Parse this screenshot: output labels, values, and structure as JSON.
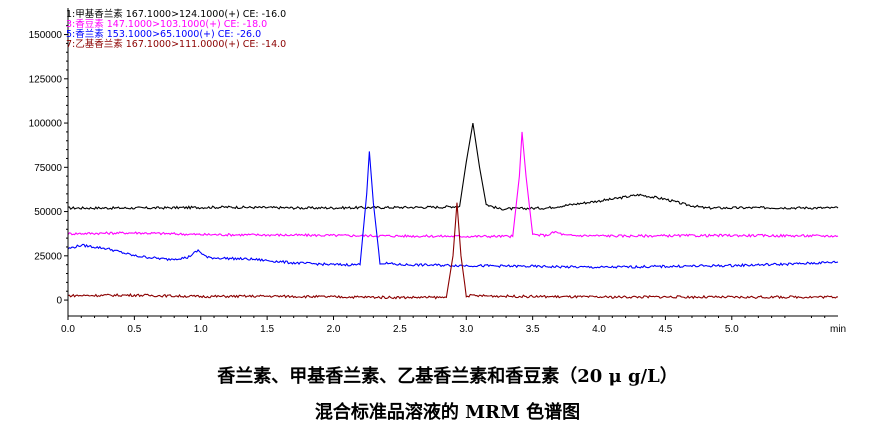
{
  "chart_data": {
    "type": "line",
    "xlim": [
      0.0,
      5.8
    ],
    "ylim": [
      -9000,
      165000
    ],
    "x_ticks": [
      "0.0",
      "0.5",
      "1.0",
      "1.5",
      "2.0",
      "2.5",
      "3.0",
      "3.5",
      "4.0",
      "4.5",
      "5.0"
    ],
    "x_unit": "min",
    "y_ticks": [
      0,
      25000,
      50000,
      75000,
      100000,
      125000,
      150000
    ],
    "grid": false,
    "legend_position": "top-left",
    "series": [
      {
        "name": "1:甲基香兰素 167.1000>124.1000(+) CE: -16.0",
        "color": "#000000",
        "points": [
          [
            0.0,
            52000
          ],
          [
            0.6,
            52000
          ],
          [
            1.2,
            52500
          ],
          [
            1.8,
            52000
          ],
          [
            2.4,
            52300
          ],
          [
            2.8,
            52500
          ],
          [
            2.95,
            53000
          ],
          [
            3.0,
            78000
          ],
          [
            3.05,
            100000
          ],
          [
            3.1,
            75000
          ],
          [
            3.15,
            54000
          ],
          [
            3.25,
            51500
          ],
          [
            3.6,
            52000
          ],
          [
            3.9,
            55000
          ],
          [
            4.1,
            57000
          ],
          [
            4.3,
            59500
          ],
          [
            4.5,
            57000
          ],
          [
            4.65,
            54000
          ],
          [
            4.8,
            52000
          ],
          [
            5.3,
            52200
          ],
          [
            5.8,
            52000
          ]
        ]
      },
      {
        "name": "3:香豆素 147.1000>103.1000(+) CE: -18.0",
        "color": "#ff00ff",
        "points": [
          [
            0.0,
            37500
          ],
          [
            0.5,
            38000
          ],
          [
            1.0,
            37000
          ],
          [
            1.5,
            36800
          ],
          [
            2.0,
            36500
          ],
          [
            2.5,
            36200
          ],
          [
            3.0,
            36000
          ],
          [
            3.35,
            36000
          ],
          [
            3.4,
            70000
          ],
          [
            3.42,
            95000
          ],
          [
            3.45,
            70000
          ],
          [
            3.5,
            37000
          ],
          [
            3.6,
            36500
          ],
          [
            3.67,
            38500
          ],
          [
            3.75,
            36500
          ],
          [
            4.2,
            36200
          ],
          [
            5.0,
            36500
          ],
          [
            5.8,
            36200
          ]
        ]
      },
      {
        "name": "5:香兰素 153.1000>65.1000(+) CE: -26.0",
        "color": "#0000ff",
        "points": [
          [
            0.0,
            29000
          ],
          [
            0.1,
            31000
          ],
          [
            0.3,
            29000
          ],
          [
            0.5,
            25000
          ],
          [
            0.75,
            23000
          ],
          [
            0.9,
            24000
          ],
          [
            0.98,
            28000
          ],
          [
            1.05,
            24000
          ],
          [
            1.4,
            23000
          ],
          [
            1.7,
            21000
          ],
          [
            2.0,
            20000
          ],
          [
            2.2,
            20000
          ],
          [
            2.25,
            60000
          ],
          [
            2.27,
            84000
          ],
          [
            2.3,
            55000
          ],
          [
            2.35,
            21000
          ],
          [
            2.5,
            20000
          ],
          [
            3.0,
            19500
          ],
          [
            3.5,
            19000
          ],
          [
            4.0,
            18500
          ],
          [
            4.5,
            19000
          ],
          [
            5.0,
            19500
          ],
          [
            5.5,
            20500
          ],
          [
            5.8,
            21500
          ]
        ]
      },
      {
        "name": "7:乙基香兰素 167.1000>111.0000(+) CE: -14.0",
        "color": "#8b0000",
        "points": [
          [
            0.0,
            2500
          ],
          [
            0.5,
            2800
          ],
          [
            1.0,
            2000
          ],
          [
            1.5,
            2200
          ],
          [
            2.0,
            1800
          ],
          [
            2.5,
            1500
          ],
          [
            2.85,
            1500
          ],
          [
            2.9,
            25000
          ],
          [
            2.93,
            55000
          ],
          [
            2.96,
            25000
          ],
          [
            3.0,
            2500
          ],
          [
            3.5,
            2000
          ],
          [
            4.0,
            1700
          ],
          [
            4.5,
            1800
          ],
          [
            5.0,
            1600
          ],
          [
            5.8,
            1800
          ]
        ]
      }
    ]
  },
  "captions": {
    "line1": "香兰素、甲基香兰素、乙基香兰素和香豆素（20 μ g/L）",
    "line2": "混合标准品溶液的 MRM 色谱图"
  }
}
